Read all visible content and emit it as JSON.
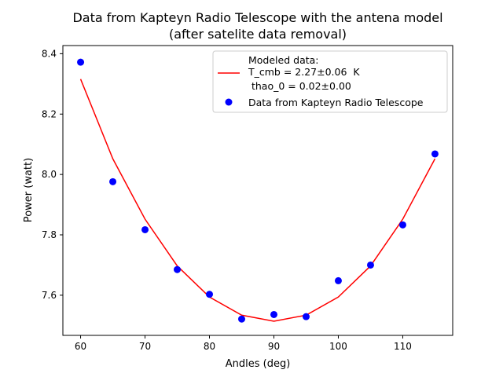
{
  "chart_data": {
    "type": "scatter",
    "title": "Data from Kapteyn Radio Telescope with the antena model",
    "subtitle": "(after satelite data removal)",
    "xlabel": "Andles (deg)",
    "ylabel": "Power (watt)",
    "xlim": [
      57.25,
      117.75
    ],
    "ylim": [
      7.467,
      8.427
    ],
    "x_ticks": [
      60,
      70,
      80,
      90,
      100,
      110
    ],
    "y_ticks": [
      7.6,
      7.8,
      8.0,
      8.2,
      8.4
    ],
    "x_tick_labels": [
      "60",
      "70",
      "80",
      "90",
      "100",
      "110"
    ],
    "y_tick_labels": [
      "7.6",
      "7.8",
      "8.0",
      "8.2",
      "8.4"
    ],
    "grid": false,
    "legend_position": "top-right",
    "series": [
      {
        "kind": "line",
        "color": "#ff0000",
        "legend_lines": [
          "Modeled data:",
          "T_cmb = 2.27±0.06  K",
          " thao_0 = 0.02±0.00"
        ],
        "x": [
          60,
          65,
          70,
          75,
          80,
          85,
          90,
          95,
          100,
          105,
          110,
          115
        ],
        "y": [
          8.316,
          8.052,
          7.852,
          7.697,
          7.594,
          7.534,
          7.514,
          7.534,
          7.594,
          7.697,
          7.852,
          8.052
        ]
      },
      {
        "kind": "scatter",
        "color": "#0000ff",
        "name": "Data from Kapteyn Radio Telescope",
        "x": [
          60,
          65,
          70,
          75,
          80,
          85,
          90,
          95,
          100,
          105,
          110,
          115
        ],
        "y": [
          8.372,
          7.976,
          7.817,
          7.685,
          7.603,
          7.521,
          7.536,
          7.529,
          7.648,
          7.7,
          7.833,
          8.068
        ]
      }
    ]
  }
}
